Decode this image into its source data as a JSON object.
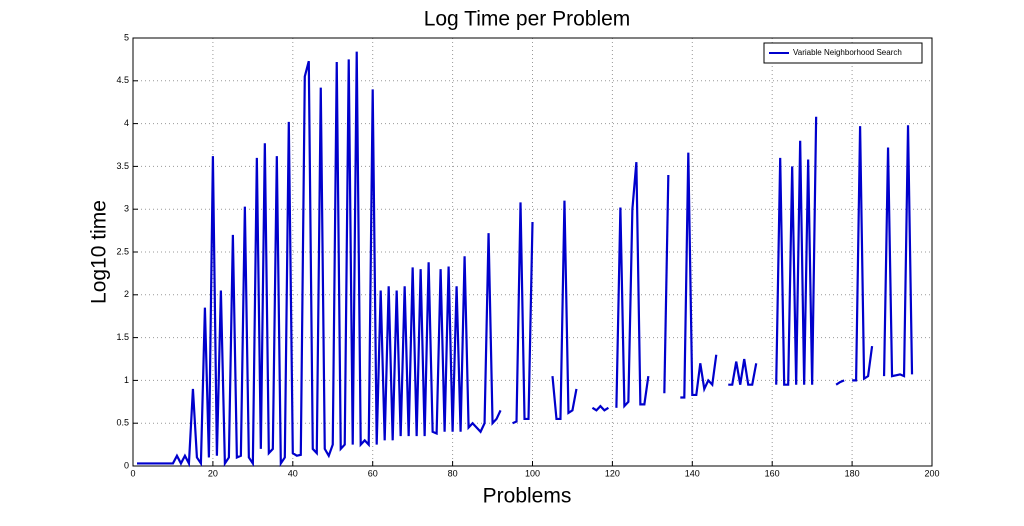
{
  "chart_data": {
    "type": "line",
    "title": "Log Time per Problem",
    "x_label": "Problems",
    "y_label": "Log10 time",
    "legend_position": "upper right",
    "grid": true,
    "xlim": [
      0,
      200
    ],
    "xticks": [
      0,
      20,
      40,
      60,
      80,
      100,
      120,
      140,
      160,
      180,
      200
    ],
    "ylim": [
      0,
      5
    ],
    "yticks": [
      0,
      0.5,
      1,
      1.5,
      2,
      2.5,
      3,
      3.5,
      4,
      4.5,
      5
    ],
    "x": [
      1,
      2,
      3,
      4,
      5,
      6,
      7,
      8,
      9,
      10,
      11,
      12,
      13,
      14,
      15,
      16,
      17,
      18,
      19,
      20,
      21,
      22,
      23,
      24,
      25,
      26,
      27,
      28,
      29,
      30,
      31,
      32,
      33,
      34,
      35,
      36,
      37,
      38,
      39,
      40,
      41,
      42,
      43,
      44,
      45,
      46,
      47,
      48,
      49,
      50,
      51,
      52,
      53,
      54,
      55,
      56,
      57,
      58,
      59,
      60,
      61,
      62,
      63,
      64,
      65,
      66,
      67,
      68,
      69,
      70,
      71,
      72,
      73,
      74,
      75,
      76,
      77,
      78,
      79,
      80,
      81,
      82,
      83,
      84,
      85,
      86,
      87,
      88,
      89,
      90,
      91,
      92,
      93,
      94,
      95,
      96,
      97,
      98,
      99,
      100,
      101,
      102,
      103,
      104,
      105,
      106,
      107,
      108,
      109,
      110,
      111,
      112,
      113,
      114,
      115,
      116,
      117,
      118,
      119,
      120,
      121,
      122,
      123,
      124,
      125,
      126,
      127,
      128,
      129,
      130,
      131,
      132,
      133,
      134,
      135,
      136,
      137,
      138,
      139,
      140,
      141,
      142,
      143,
      144,
      145,
      146,
      147,
      148,
      149,
      150,
      151,
      152,
      153,
      154,
      155,
      156,
      157,
      158,
      159,
      160,
      161,
      162,
      163,
      164,
      165,
      166,
      167,
      168,
      169,
      170,
      171,
      172,
      173,
      174,
      175,
      176,
      177,
      178,
      179,
      180,
      181,
      182,
      183,
      184,
      185,
      186,
      187,
      188,
      189,
      190,
      191,
      192,
      193,
      194,
      195
    ],
    "series": [
      {
        "name": "Variable Neighborhood Search",
        "color": "#0000cc",
        "values": [
          0.03,
          0.03,
          0.03,
          0.03,
          0.03,
          0.03,
          0.03,
          0.03,
          0.03,
          0.03,
          0.12,
          0.03,
          0.12,
          0.03,
          0.9,
          0.1,
          0.03,
          1.85,
          0.1,
          3.62,
          0.12,
          2.05,
          0.03,
          0.1,
          2.7,
          0.1,
          0.12,
          3.03,
          0.1,
          0.03,
          3.6,
          0.2,
          3.77,
          0.15,
          0.2,
          3.62,
          0.03,
          0.1,
          4.02,
          0.15,
          0.12,
          0.13,
          4.55,
          4.73,
          0.2,
          0.15,
          4.42,
          0.2,
          0.12,
          0.25,
          4.72,
          0.2,
          0.25,
          4.75,
          0.25,
          4.84,
          0.25,
          0.3,
          0.25,
          4.4,
          0.25,
          2.05,
          0.3,
          2.1,
          0.3,
          2.05,
          0.35,
          2.1,
          0.35,
          2.32,
          0.35,
          2.3,
          0.35,
          2.38,
          0.4,
          0.38,
          2.3,
          0.4,
          2.33,
          0.4,
          2.1,
          0.4,
          2.45,
          0.45,
          0.5,
          0.45,
          0.4,
          0.5,
          2.72,
          0.5,
          0.55,
          0.65,
          null,
          null,
          0.5,
          0.52,
          3.08,
          0.55,
          0.55,
          2.85,
          null,
          null,
          0.6,
          null,
          1.05,
          0.55,
          0.55,
          3.1,
          0.62,
          0.65,
          0.9,
          null,
          null,
          null,
          0.68,
          0.65,
          0.7,
          0.65,
          0.68,
          null,
          0.68,
          3.02,
          0.7,
          0.75,
          3.0,
          3.55,
          0.72,
          0.72,
          1.05,
          null,
          null,
          null,
          0.85,
          3.4,
          null,
          null,
          0.8,
          0.8,
          3.66,
          0.83,
          0.83,
          1.2,
          0.9,
          1.0,
          0.95,
          1.3,
          null,
          null,
          0.95,
          0.95,
          1.22,
          0.95,
          1.25,
          0.95,
          0.95,
          1.2,
          null,
          null,
          null,
          null,
          0.95,
          3.6,
          0.95,
          0.95,
          3.5,
          0.95,
          3.8,
          0.95,
          3.58,
          0.95,
          4.08,
          null,
          null,
          null,
          null,
          0.95,
          0.98,
          1.0,
          null,
          1.0,
          1.0,
          3.97,
          1.02,
          1.05,
          1.4,
          null,
          null,
          1.05,
          3.72,
          1.05,
          1.06,
          1.07,
          1.05,
          3.98,
          1.07
        ]
      }
    ]
  }
}
